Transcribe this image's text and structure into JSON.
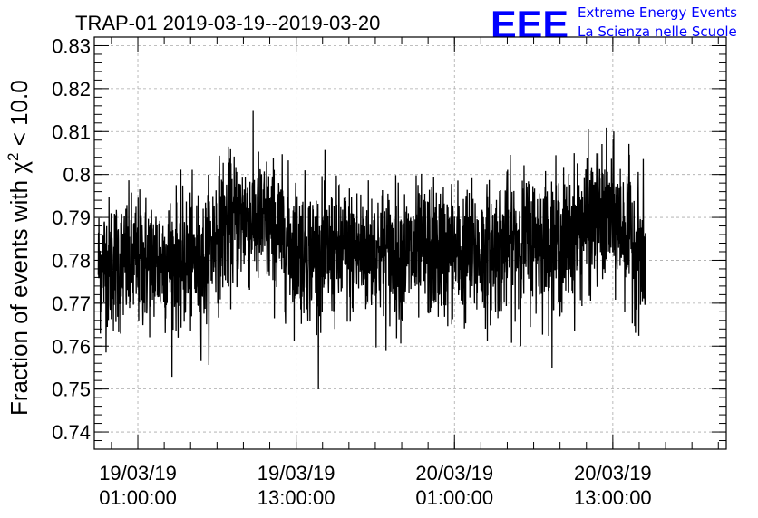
{
  "chart_data": {
    "type": "line",
    "title": "TRAP-01 2019-03-19--2019-03-20",
    "ylabel_prefix": "Fraction of events with χ",
    "ylabel_sup": "2",
    "ylabel_suffix": " < 10.0",
    "xlabel": "",
    "ylim": [
      0.736,
      0.832
    ],
    "yticks": [
      0.74,
      0.75,
      0.76,
      0.77,
      0.78,
      0.79,
      0.8,
      0.81,
      0.82,
      0.83
    ],
    "ytick_labels": [
      "0.74",
      "0.75",
      "0.76",
      "0.77",
      "0.78",
      "0.79",
      "0.8",
      "0.81",
      "0.82",
      "0.83"
    ],
    "xlim_hours": [
      -3.3,
      44.6
    ],
    "xticks_hours": [
      0,
      12,
      24,
      36
    ],
    "xtick_labels": [
      {
        "date": "19/03/19",
        "time": "01:00:00"
      },
      {
        "date": "19/03/19",
        "time": "13:00:00"
      },
      {
        "date": "20/03/19",
        "time": "01:00:00"
      },
      {
        "date": "20/03/19",
        "time": "13:00:00"
      }
    ],
    "grid": true,
    "series": [
      {
        "name": "fraction",
        "x_hours": [
          -3.0,
          -1.0,
          1.0,
          3.0,
          5.0,
          6.0,
          8.0,
          10.0,
          12.0,
          14.0,
          16.0,
          18.0,
          20.0,
          22.0,
          24.0,
          26.0,
          28.0,
          30.0,
          32.0,
          33.0,
          34.0,
          36.0,
          37.0,
          38.5
        ],
        "values": [
          0.779,
          0.779,
          0.78,
          0.78,
          0.779,
          0.787,
          0.79,
          0.788,
          0.783,
          0.781,
          0.782,
          0.782,
          0.781,
          0.782,
          0.782,
          0.781,
          0.784,
          0.785,
          0.784,
          0.786,
          0.789,
          0.79,
          0.787,
          0.78
        ]
      }
    ]
  },
  "logo": {
    "mark": "EEE",
    "line1": "Extreme Energy Events",
    "line2": "La Scienza nelle Scuole",
    "color": "#0000ff"
  },
  "colors": {
    "line": "#000000",
    "grid": "#aaaaaa",
    "frame": "#000000"
  }
}
